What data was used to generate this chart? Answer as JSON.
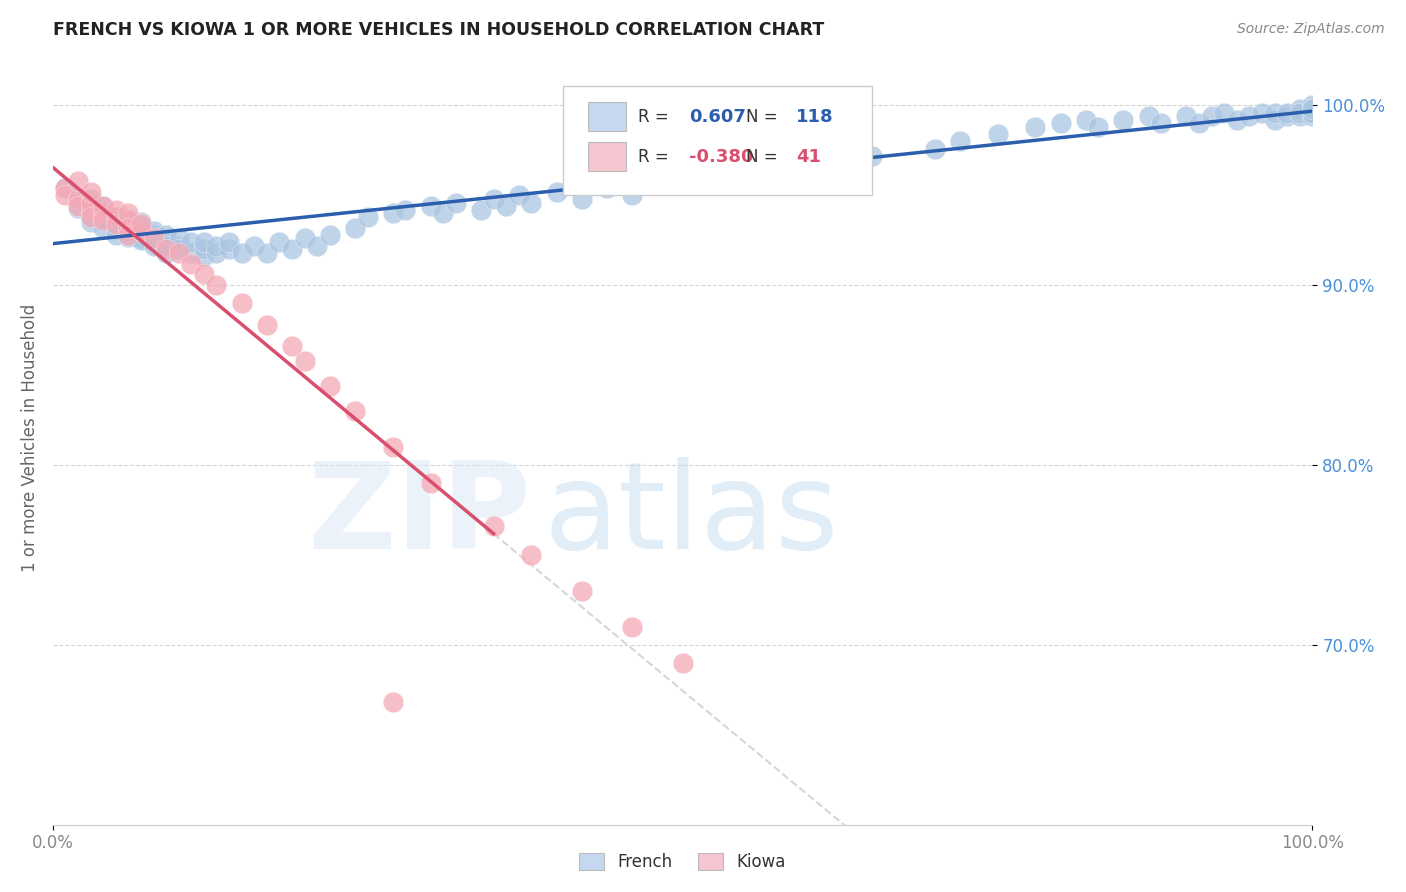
{
  "title": "FRENCH VS KIOWA 1 OR MORE VEHICLES IN HOUSEHOLD CORRELATION CHART",
  "source": "Source: ZipAtlas.com",
  "ylabel": "1 or more Vehicles in Household",
  "xlim": [
    0.0,
    1.0
  ],
  "ylim": [
    0.6,
    1.03
  ],
  "xtick_vals": [
    0.0,
    1.0
  ],
  "xtick_labels": [
    "0.0%",
    "100.0%"
  ],
  "ytick_vals": [
    0.7,
    0.8,
    0.9,
    1.0
  ],
  "ytick_labels": [
    "70.0%",
    "80.0%",
    "90.0%",
    "100.0%"
  ],
  "french_R": "0.607",
  "french_N": "118",
  "kiowa_R": "-0.380",
  "kiowa_N": "41",
  "french_color": "#aac5e2",
  "kiowa_color": "#f4a8b5",
  "french_line_color": "#2b5fad",
  "kiowa_line_color": "#d94f6e",
  "background_color": "#ffffff",
  "grid_color": "#cccccc",
  "ytick_color": "#4a90d9",
  "xtick_color": "#888888",
  "legend_blue_fill": "#c5d8f0",
  "legend_pink_fill": "#f5c5d0",
  "legend_border": "#bbbbbb",
  "legend_bg": "#ffffff",
  "watermark_zip_color": "#dce8f0",
  "watermark_atlas_color": "#c8dff5",
  "french_scatter_x": [
    0.01,
    0.02,
    0.02,
    0.03,
    0.03,
    0.03,
    0.03,
    0.04,
    0.04,
    0.04,
    0.04,
    0.04,
    0.05,
    0.05,
    0.05,
    0.05,
    0.05,
    0.05,
    0.06,
    0.06,
    0.06,
    0.06,
    0.06,
    0.06,
    0.06,
    0.06,
    0.06,
    0.07,
    0.07,
    0.07,
    0.07,
    0.07,
    0.07,
    0.07,
    0.08,
    0.08,
    0.08,
    0.08,
    0.09,
    0.09,
    0.09,
    0.09,
    0.1,
    0.1,
    0.1,
    0.11,
    0.11,
    0.12,
    0.12,
    0.12,
    0.13,
    0.13,
    0.14,
    0.14,
    0.15,
    0.16,
    0.17,
    0.18,
    0.19,
    0.2,
    0.21,
    0.22,
    0.24,
    0.25,
    0.27,
    0.28,
    0.3,
    0.31,
    0.32,
    0.34,
    0.35,
    0.36,
    0.37,
    0.38,
    0.4,
    0.42,
    0.44,
    0.46,
    0.47,
    0.5,
    0.55,
    0.57,
    0.6,
    0.62,
    0.65,
    0.7,
    0.72,
    0.75,
    0.78,
    0.8,
    0.82,
    0.83,
    0.85,
    0.87,
    0.88,
    0.9,
    0.91,
    0.92,
    0.93,
    0.94,
    0.95,
    0.96,
    0.97,
    0.97,
    0.98,
    0.98,
    0.99,
    0.99,
    0.99,
    1.0,
    1.0,
    1.0,
    1.0,
    1.0,
    1.0,
    1.0,
    1.0,
    1.0
  ],
  "french_scatter_y": [
    0.954,
    0.947,
    0.943,
    0.948,
    0.938,
    0.942,
    0.935,
    0.94,
    0.938,
    0.944,
    0.936,
    0.932,
    0.935,
    0.938,
    0.933,
    0.936,
    0.931,
    0.928,
    0.934,
    0.937,
    0.932,
    0.935,
    0.93,
    0.933,
    0.927,
    0.93,
    0.935,
    0.928,
    0.932,
    0.926,
    0.929,
    0.935,
    0.932,
    0.925,
    0.928,
    0.93,
    0.925,
    0.922,
    0.924,
    0.928,
    0.922,
    0.918,
    0.922,
    0.926,
    0.92,
    0.918,
    0.924,
    0.916,
    0.92,
    0.924,
    0.918,
    0.922,
    0.92,
    0.924,
    0.918,
    0.922,
    0.918,
    0.924,
    0.92,
    0.926,
    0.922,
    0.928,
    0.932,
    0.938,
    0.94,
    0.942,
    0.944,
    0.94,
    0.946,
    0.942,
    0.948,
    0.944,
    0.95,
    0.946,
    0.952,
    0.948,
    0.954,
    0.95,
    0.956,
    0.96,
    0.962,
    0.958,
    0.964,
    0.968,
    0.972,
    0.976,
    0.98,
    0.984,
    0.988,
    0.99,
    0.992,
    0.988,
    0.992,
    0.994,
    0.99,
    0.994,
    0.99,
    0.994,
    0.996,
    0.992,
    0.994,
    0.996,
    0.992,
    0.996,
    0.994,
    0.996,
    0.994,
    0.998,
    0.996,
    0.994,
    0.996,
    0.998,
    0.996,
    0.998,
    1.0,
    0.998,
    0.996,
    0.998
  ],
  "kiowa_scatter_x": [
    0.01,
    0.01,
    0.02,
    0.02,
    0.02,
    0.03,
    0.03,
    0.03,
    0.03,
    0.04,
    0.04,
    0.04,
    0.05,
    0.05,
    0.05,
    0.06,
    0.06,
    0.06,
    0.06,
    0.07,
    0.07,
    0.08,
    0.09,
    0.1,
    0.11,
    0.12,
    0.13,
    0.15,
    0.17,
    0.19,
    0.2,
    0.22,
    0.24,
    0.27,
    0.3,
    0.35,
    0.38,
    0.42,
    0.46,
    0.5,
    0.27
  ],
  "kiowa_scatter_y": [
    0.954,
    0.95,
    0.948,
    0.944,
    0.958,
    0.942,
    0.946,
    0.952,
    0.938,
    0.94,
    0.944,
    0.936,
    0.938,
    0.942,
    0.934,
    0.936,
    0.94,
    0.932,
    0.928,
    0.93,
    0.934,
    0.926,
    0.92,
    0.918,
    0.912,
    0.906,
    0.9,
    0.89,
    0.878,
    0.866,
    0.858,
    0.844,
    0.83,
    0.81,
    0.79,
    0.766,
    0.75,
    0.73,
    0.71,
    0.69,
    0.668
  ]
}
